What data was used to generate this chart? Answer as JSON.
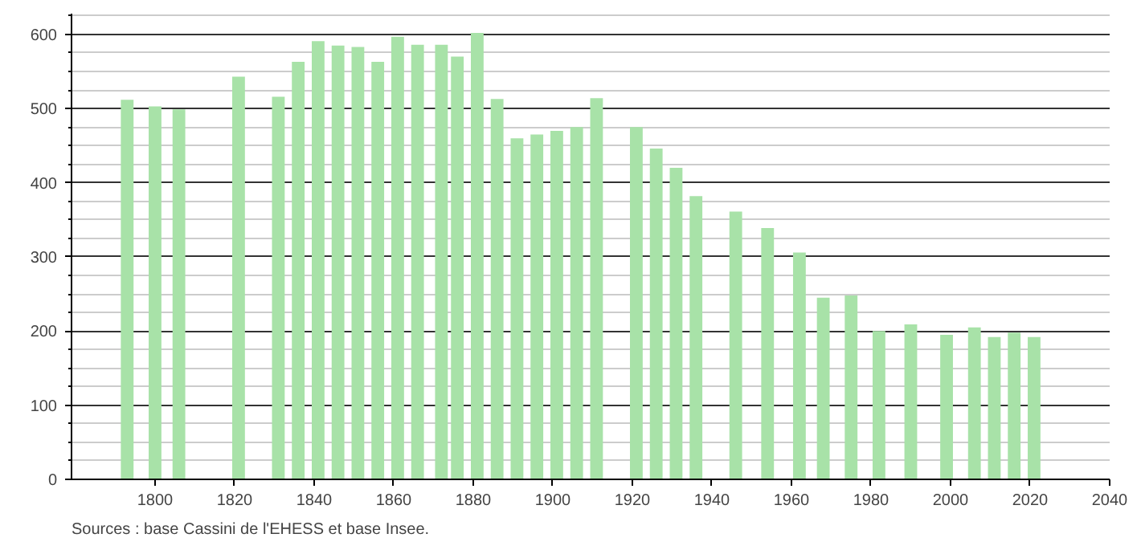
{
  "chart_data": {
    "type": "bar",
    "x": [
      1793,
      1800,
      1806,
      1821,
      1831,
      1836,
      1841,
      1846,
      1851,
      1856,
      1861,
      1866,
      1872,
      1876,
      1881,
      1886,
      1891,
      1896,
      1901,
      1906,
      1911,
      1921,
      1926,
      1931,
      1936,
      1946,
      1954,
      1962,
      1968,
      1975,
      1982,
      1990,
      1999,
      2006,
      2011,
      2016,
      2021
    ],
    "values": [
      512,
      503,
      499,
      543,
      516,
      563,
      591,
      585,
      583,
      563,
      597,
      586,
      586,
      570,
      602,
      513,
      460,
      465,
      470,
      475,
      514,
      475,
      446,
      420,
      382,
      361,
      339,
      306,
      245,
      248,
      200,
      209,
      195,
      205,
      192,
      198,
      192
    ],
    "color": "#a8e2a8",
    "xlim": [
      1779,
      2040
    ],
    "xticks": [
      1800,
      1820,
      1840,
      1860,
      1880,
      1900,
      1920,
      1940,
      1960,
      1980,
      2000,
      2020,
      2040
    ],
    "ylim": [
      0,
      628
    ],
    "yticks": [
      0,
      100,
      200,
      300,
      400,
      500,
      600
    ],
    "grid": "y",
    "annotations": [
      "Sources : base Cassini de l'EHESS et base Insee."
    ]
  }
}
